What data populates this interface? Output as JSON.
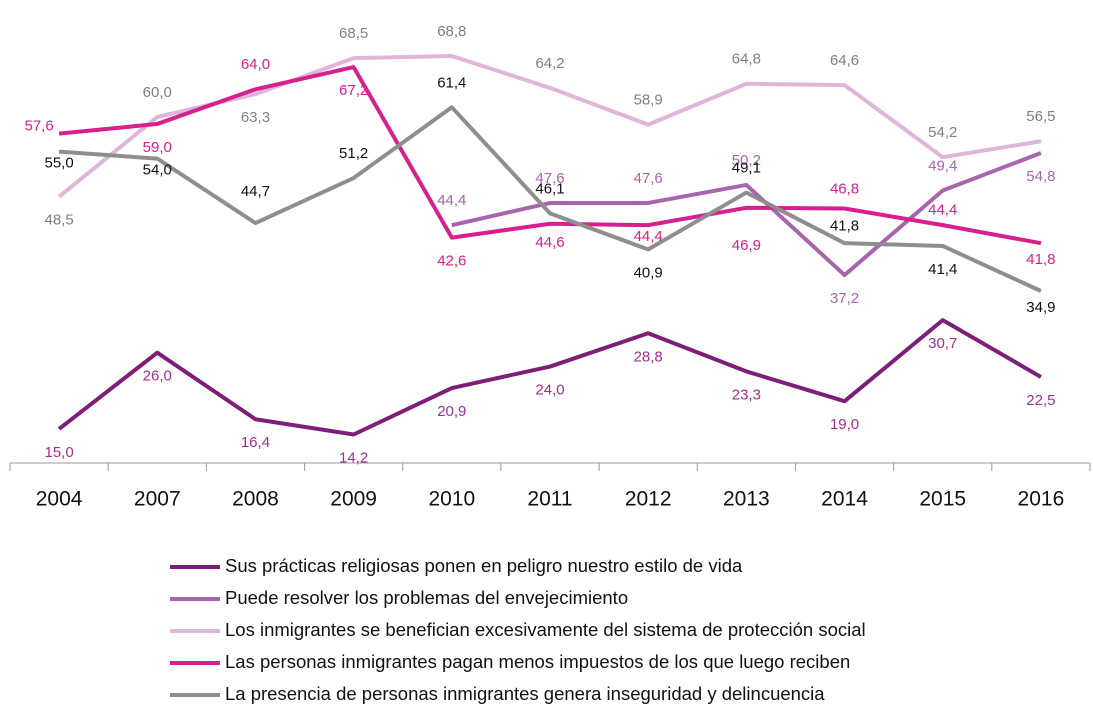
{
  "chart_data": {
    "type": "line",
    "categories": [
      "2004",
      "2007",
      "2008",
      "2009",
      "2010",
      "2011",
      "2012",
      "2013",
      "2014",
      "2015",
      "2016"
    ],
    "series": [
      {
        "name": "Sus prácticas religiosas ponen en peligro nuestro estilo de vida",
        "color": "#7d1f78",
        "label_color": "#a0308f",
        "values": [
          15.0,
          26.0,
          16.4,
          14.2,
          20.9,
          24.0,
          28.8,
          23.3,
          19.0,
          30.7,
          22.5
        ],
        "value_labels": [
          "15,0",
          "26,0",
          "16,4",
          "14,2",
          "20,9",
          "24,0",
          "28,8",
          "23,3",
          "19,0",
          "30,7",
          "22,5"
        ]
      },
      {
        "name": "Puede resolver los problemas del envejecimiento",
        "color": "#a865ad",
        "label_color": "#a865ad",
        "values": [
          null,
          null,
          null,
          null,
          44.4,
          47.6,
          47.6,
          50.2,
          37.2,
          49.4,
          54.8
        ],
        "value_labels": [
          null,
          null,
          null,
          null,
          "44,4",
          "47,6",
          "47,6",
          "50,2",
          "37,2",
          "49,4",
          "54,8"
        ]
      },
      {
        "name": "Los inmigrantes se benefician excesivamente del sistema de protección social",
        "color": "#dfb6da",
        "label_color": "#7f7f7f",
        "values": [
          48.5,
          60.0,
          63.3,
          68.5,
          68.8,
          64.2,
          58.9,
          64.8,
          64.6,
          54.2,
          56.5
        ],
        "value_labels": [
          "48,5",
          "60,0",
          "63,3",
          "68,5",
          "68,8",
          "64,2",
          "58,9",
          "64,8",
          "64,6",
          "54,2",
          "56,5"
        ]
      },
      {
        "name": "Las personas inmigrantes pagan menos impuestos de los que luego reciben",
        "color": "#d6208e",
        "label_color": "#d6208e",
        "values": [
          57.6,
          59.0,
          64.0,
          67.2,
          42.6,
          44.6,
          44.4,
          46.9,
          46.8,
          44.4,
          41.8
        ],
        "value_labels": [
          "57,6",
          "59,0",
          "64,0",
          "67,2",
          "42,6",
          "44,6",
          "44,4",
          "46,9",
          "46,8",
          "44,4",
          "41,8"
        ]
      },
      {
        "name": "La presencia de personas inmigrantes genera inseguridad y delincuencia",
        "color": "#8e8e8e",
        "label_color": "#111111",
        "values": [
          55.0,
          54.0,
          44.7,
          51.2,
          61.4,
          46.1,
          40.9,
          49.1,
          41.8,
          41.4,
          34.9
        ],
        "value_labels": [
          "55,0",
          "54,0",
          "44,7",
          "51,2",
          "61,4",
          "46,1",
          "40,9",
          "49,1",
          "41,8",
          "41,4",
          "34,9"
        ]
      }
    ]
  }
}
